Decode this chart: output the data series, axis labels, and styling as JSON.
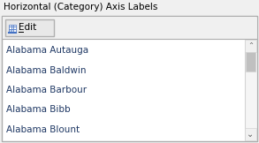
{
  "title": "Horizontal (Category) Axis Labels",
  "edit_text": "Edit",
  "items": [
    "Alabama Autauga",
    "Alabama Baldwin",
    "Alabama Barbour",
    "Alabama Bibb",
    "Alabama Blount"
  ],
  "bg_color": "#f0f0f0",
  "dialog_bg": "#ffffff",
  "outer_border_color": "#adadad",
  "inner_border_color": "#d4d4d4",
  "title_color": "#000000",
  "item_color": "#1f3864",
  "title_fontsize": 7.5,
  "item_fontsize": 7.5,
  "button_bg": "#e8e8e8",
  "button_border": "#b0b0b0",
  "scrollbar_track_color": "#f5f5f5",
  "scrollbar_thumb_color": "#c0c0c0",
  "scrollbar_arrow_color": "#606060",
  "fig_w": 2.93,
  "fig_h": 1.62,
  "dpi": 100
}
